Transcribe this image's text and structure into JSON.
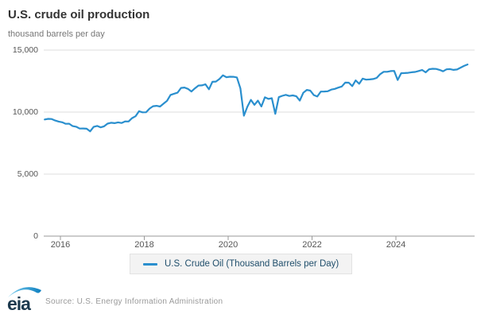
{
  "header": {
    "title": "U.S. crude oil production",
    "subtitle": "thousand barrels per day"
  },
  "legend": {
    "label": "U.S. Crude Oil (Thousand Barrels per Day)"
  },
  "footer": {
    "logo_text": "eia",
    "source": "Source: U.S. Energy Information Administration"
  },
  "colors": {
    "line": "#2a8fce",
    "grid": "#dcdcdc",
    "axis": "#999999",
    "tick_text": "#555555",
    "legend_bg": "#f3f3f3",
    "legend_text": "#1f4e6b",
    "logo_swoosh": "#2aa3dc",
    "logo_text": "#1c394e"
  },
  "chart_data": {
    "type": "line",
    "title": "U.S. crude oil production",
    "ylabel": "thousand barrels per day",
    "series_name": "U.S. Crude Oil (Thousand Barrels per Day)",
    "frequency": "monthly",
    "start": "2015-08",
    "end": "2025-09",
    "values": [
      9407,
      9452,
      9440,
      9318,
      9235,
      9179,
      9060,
      9067,
      8874,
      8822,
      8670,
      8680,
      8662,
      8450,
      8807,
      8882,
      8771,
      8852,
      9068,
      9142,
      9109,
      9176,
      9121,
      9249,
      9242,
      9510,
      9665,
      10071,
      9979,
      9989,
      10281,
      10474,
      10505,
      10449,
      10678,
      10910,
      11382,
      11480,
      11566,
      11948,
      11983,
      11871,
      11660,
      11917,
      12138,
      12154,
      12241,
      11841,
      12441,
      12463,
      12666,
      12966,
      12816,
      12852,
      12844,
      12797,
      11911,
      9714,
      10443,
      10985,
      10584,
      10923,
      10458,
      11193,
      11063,
      11124,
      9862,
      11206,
      11316,
      11390,
      11302,
      11347,
      11274,
      10932,
      11555,
      11789,
      11733,
      11371,
      11257,
      11655,
      11660,
      11680,
      11816,
      11870,
      11977,
      12067,
      12381,
      12375,
      12096,
      12557,
      12280,
      12696,
      12615,
      12636,
      12665,
      12754,
      13058,
      13247,
      13252,
      13308,
      13319,
      12589,
      13136,
      13150,
      13167,
      13209,
      13235,
      13313,
      13400,
      13204,
      13457,
      13496,
      13481,
      13406,
      13288,
      13450,
      13466,
      13404,
      13435,
      13583,
      13722,
      13840
    ],
    "y_ticks": [
      {
        "value": 0,
        "label": "0"
      },
      {
        "value": 5000,
        "label": "5,000"
      },
      {
        "value": 10000,
        "label": "10,000"
      },
      {
        "value": 15000,
        "label": "15,000"
      }
    ],
    "x_ticks": [
      {
        "value": 2016,
        "label": "2016"
      },
      {
        "value": 2018,
        "label": "2018"
      },
      {
        "value": 2020,
        "label": "2020"
      },
      {
        "value": 2022,
        "label": "2022"
      },
      {
        "value": 2024,
        "label": "2024"
      }
    ],
    "ylim": [
      0,
      15000
    ],
    "grid": "horizontal",
    "legend_position": "bottom"
  }
}
